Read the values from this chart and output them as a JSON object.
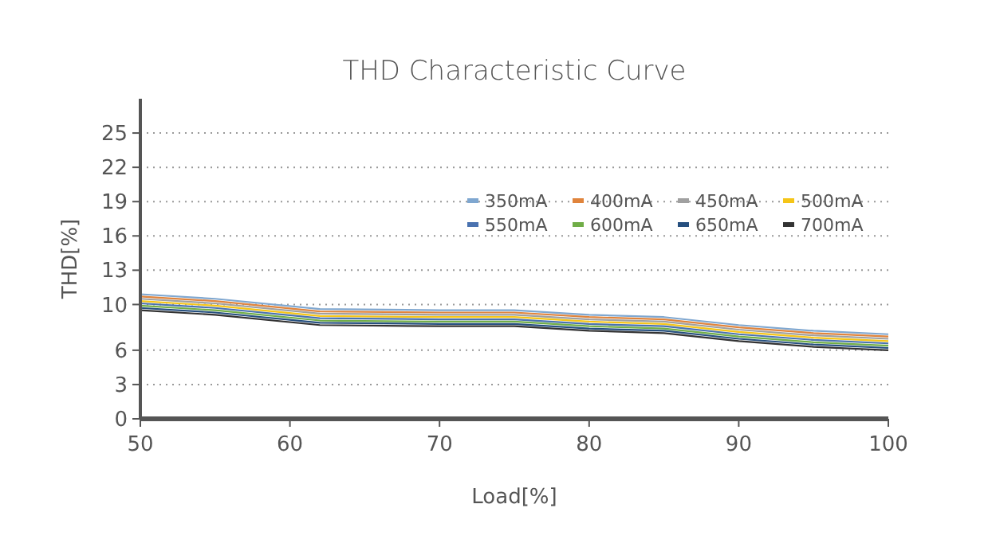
{
  "chart_data": {
    "type": "line",
    "title": "THD Characteristic Curve",
    "xlabel": "Load[%]",
    "ylabel": "THD[%]",
    "x": [
      50,
      55,
      62,
      70,
      75,
      80,
      85,
      90,
      95,
      100
    ],
    "xlim": [
      50,
      100
    ],
    "xticks": [
      50,
      60,
      70,
      80,
      90,
      100
    ],
    "ylim": [
      0,
      28
    ],
    "yticks": [
      0,
      3,
      6,
      10,
      13,
      16,
      19,
      22,
      25
    ],
    "grid": "y",
    "legend": "top right",
    "line_style": "solid",
    "marker": "none",
    "series": [
      {
        "name": "350mA",
        "color": "#7fa7d0",
        "values": [
          10.9,
          10.5,
          9.6,
          9.5,
          9.5,
          9.1,
          8.9,
          8.2,
          7.7,
          7.4
        ]
      },
      {
        "name": "400mA",
        "color": "#e0843c",
        "values": [
          10.7,
          10.3,
          9.4,
          9.3,
          9.3,
          8.9,
          8.7,
          8.0,
          7.5,
          7.2
        ]
      },
      {
        "name": "450mA",
        "color": "#a0a0a0",
        "values": [
          10.5,
          10.1,
          9.2,
          9.1,
          9.1,
          8.7,
          8.5,
          7.8,
          7.3,
          7.0
        ]
      },
      {
        "name": "500mA",
        "color": "#f5c518",
        "values": [
          10.3,
          9.9,
          9.0,
          8.9,
          8.9,
          8.5,
          8.3,
          7.6,
          7.1,
          6.8
        ]
      },
      {
        "name": "550mA",
        "color": "#4a72b0",
        "values": [
          10.1,
          9.7,
          8.8,
          8.7,
          8.7,
          8.3,
          8.1,
          7.4,
          6.9,
          6.6
        ]
      },
      {
        "name": "600mA",
        "color": "#70ad47",
        "values": [
          9.9,
          9.5,
          8.6,
          8.5,
          8.5,
          8.1,
          7.9,
          7.2,
          6.7,
          6.4
        ]
      },
      {
        "name": "650mA",
        "color": "#264f7f",
        "values": [
          9.7,
          9.3,
          8.4,
          8.3,
          8.3,
          7.9,
          7.7,
          7.0,
          6.5,
          6.2
        ]
      },
      {
        "name": "700mA",
        "color": "#333333",
        "values": [
          9.5,
          9.1,
          8.2,
          8.1,
          8.1,
          7.7,
          7.5,
          6.8,
          6.3,
          6.0
        ]
      }
    ]
  }
}
